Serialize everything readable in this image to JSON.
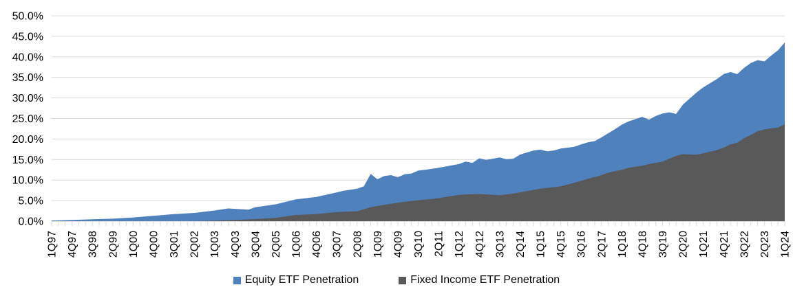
{
  "chart_data": {
    "type": "area",
    "mode": "overlay",
    "note": "Two independent penetration-rate series drawn as overlapping areas; Fixed Income (gray) is drawn in front of Equity (blue). Values in percent.",
    "title": "",
    "xlabel": "",
    "ylabel": "",
    "unit": "%",
    "ylim": [
      0,
      50
    ],
    "grid": "horizontal",
    "legend_position": "bottom-center",
    "background_color": "#FFFFFF",
    "gridline_color": "#D9D9D9",
    "axis_color": "#D9D9D9",
    "text_color": "#000000",
    "y_axis": {
      "tick_labels": [
        "0.0%",
        "5.0%",
        "10.0%",
        "15.0%",
        "20.0%",
        "25.0%",
        "30.0%",
        "35.0%",
        "40.0%",
        "45.0%",
        "50.0%"
      ]
    },
    "x_axis": {
      "first_quarter": "1Q97",
      "last_quarter": "1Q24",
      "tick_every_quarters": 1,
      "label_every_quarters": 3,
      "tick_labels": [
        "1Q97",
        "4Q97",
        "3Q98",
        "2Q99",
        "1Q00",
        "4Q00",
        "3Q01",
        "2Q02",
        "1Q03",
        "4Q03",
        "3Q04",
        "2Q05",
        "1Q06",
        "4Q06",
        "3Q07",
        "2Q08",
        "1Q09",
        "4Q09",
        "3Q10",
        "2Q11",
        "1Q12",
        "4Q12",
        "3Q13",
        "2Q14",
        "1Q15",
        "4Q15",
        "3Q16",
        "2Q17",
        "1Q18",
        "4Q18",
        "3Q19",
        "2Q20",
        "1Q21",
        "4Q21",
        "3Q22",
        "2Q23",
        "1Q24"
      ]
    },
    "series": [
      {
        "name": "Equity ETF Penetration",
        "color": "#4F81BD",
        "points": [
          [
            "1Q97",
            0.15
          ],
          [
            "4Q97",
            0.3
          ],
          [
            "3Q98",
            0.45
          ],
          [
            "2Q99",
            0.6
          ],
          [
            "1Q00",
            0.9
          ],
          [
            "4Q00",
            1.3
          ],
          [
            "3Q01",
            1.7
          ],
          [
            "2Q02",
            2.0
          ],
          [
            "1Q03",
            2.6
          ],
          [
            "3Q03",
            3.1
          ],
          [
            "2Q04",
            2.8
          ],
          [
            "3Q04",
            3.4
          ],
          [
            "2Q05",
            4.1
          ],
          [
            "1Q06",
            5.3
          ],
          [
            "4Q06",
            5.9
          ],
          [
            "3Q07",
            7.0
          ],
          [
            "4Q07",
            7.4
          ],
          [
            "2Q08",
            7.9
          ],
          [
            "3Q08",
            8.5
          ],
          [
            "4Q08",
            11.5
          ],
          [
            "1Q09",
            10.2
          ],
          [
            "2Q09",
            11.0
          ],
          [
            "3Q09",
            11.2
          ],
          [
            "4Q09",
            10.7
          ],
          [
            "1Q10",
            11.4
          ],
          [
            "2Q10",
            11.6
          ],
          [
            "3Q10",
            12.3
          ],
          [
            "4Q10",
            12.5
          ],
          [
            "2Q11",
            13.0
          ],
          [
            "3Q11",
            13.3
          ],
          [
            "1Q12",
            13.9
          ],
          [
            "2Q12",
            14.5
          ],
          [
            "3Q12",
            14.2
          ],
          [
            "4Q12",
            15.3
          ],
          [
            "1Q13",
            14.9
          ],
          [
            "3Q13",
            15.5
          ],
          [
            "4Q13",
            15.1
          ],
          [
            "1Q14",
            15.2
          ],
          [
            "2Q14",
            16.2
          ],
          [
            "4Q14",
            17.2
          ],
          [
            "1Q15",
            17.4
          ],
          [
            "2Q15",
            17.0
          ],
          [
            "3Q15",
            17.2
          ],
          [
            "4Q15",
            17.7
          ],
          [
            "2Q16",
            18.1
          ],
          [
            "3Q16",
            18.7
          ],
          [
            "4Q16",
            19.2
          ],
          [
            "1Q17",
            19.5
          ],
          [
            "2Q17",
            20.4
          ],
          [
            "4Q17",
            22.4
          ],
          [
            "1Q18",
            23.5
          ],
          [
            "2Q18",
            24.3
          ],
          [
            "4Q18",
            25.4
          ],
          [
            "1Q19",
            24.7
          ],
          [
            "2Q19",
            25.6
          ],
          [
            "3Q19",
            26.2
          ],
          [
            "4Q19",
            26.5
          ],
          [
            "1Q20",
            26.1
          ],
          [
            "2Q20",
            28.4
          ],
          [
            "4Q20",
            31.3
          ],
          [
            "1Q21",
            32.6
          ],
          [
            "3Q21",
            34.6
          ],
          [
            "4Q21",
            35.8
          ],
          [
            "1Q22",
            36.3
          ],
          [
            "2Q22",
            35.8
          ],
          [
            "3Q22",
            37.3
          ],
          [
            "4Q22",
            38.5
          ],
          [
            "1Q23",
            39.2
          ],
          [
            "2Q23",
            38.9
          ],
          [
            "3Q23",
            40.3
          ],
          [
            "4Q23",
            41.6
          ],
          [
            "1Q24",
            43.5
          ]
        ]
      },
      {
        "name": "Fixed Income ETF Penetration",
        "color": "#595959",
        "points": [
          [
            "1Q97",
            0.0
          ],
          [
            "2Q02",
            0.0
          ],
          [
            "3Q02",
            0.05
          ],
          [
            "1Q03",
            0.15
          ],
          [
            "4Q03",
            0.3
          ],
          [
            "3Q04",
            0.5
          ],
          [
            "2Q05",
            0.8
          ],
          [
            "1Q06",
            1.5
          ],
          [
            "4Q06",
            1.7
          ],
          [
            "3Q07",
            2.2
          ],
          [
            "2Q08",
            2.4
          ],
          [
            "4Q08",
            3.4
          ],
          [
            "1Q09",
            3.7
          ],
          [
            "4Q09",
            4.5
          ],
          [
            "1Q10",
            4.7
          ],
          [
            "3Q10",
            5.1
          ],
          [
            "1Q11",
            5.4
          ],
          [
            "2Q11",
            5.6
          ],
          [
            "1Q12",
            6.4
          ],
          [
            "2Q12",
            6.5
          ],
          [
            "4Q12",
            6.6
          ],
          [
            "3Q13",
            6.3
          ],
          [
            "1Q14",
            6.7
          ],
          [
            "2Q14",
            7.0
          ],
          [
            "1Q15",
            7.9
          ],
          [
            "2Q15",
            8.1
          ],
          [
            "4Q15",
            8.5
          ],
          [
            "1Q16",
            8.9
          ],
          [
            "3Q16",
            9.8
          ],
          [
            "4Q16",
            10.3
          ],
          [
            "2Q17",
            11.2
          ],
          [
            "3Q17",
            11.8
          ],
          [
            "1Q18",
            12.5
          ],
          [
            "2Q18",
            13.0
          ],
          [
            "4Q18",
            13.5
          ],
          [
            "1Q19",
            13.9
          ],
          [
            "3Q19",
            14.5
          ],
          [
            "4Q19",
            15.2
          ],
          [
            "1Q20",
            15.9
          ],
          [
            "2Q20",
            16.3
          ],
          [
            "4Q20",
            16.2
          ],
          [
            "1Q21",
            16.5
          ],
          [
            "3Q21",
            17.3
          ],
          [
            "4Q21",
            17.9
          ],
          [
            "1Q22",
            18.7
          ],
          [
            "2Q22",
            19.1
          ],
          [
            "3Q22",
            20.2
          ],
          [
            "4Q22",
            21.0
          ],
          [
            "1Q23",
            21.9
          ],
          [
            "2Q23",
            22.3
          ],
          [
            "3Q23",
            22.6
          ],
          [
            "4Q23",
            22.8
          ],
          [
            "1Q24",
            23.6
          ]
        ]
      }
    ]
  },
  "legend": {
    "equity_label": "Equity ETF Penetration",
    "fixed_income_label": "Fixed Income ETF Penetration"
  }
}
